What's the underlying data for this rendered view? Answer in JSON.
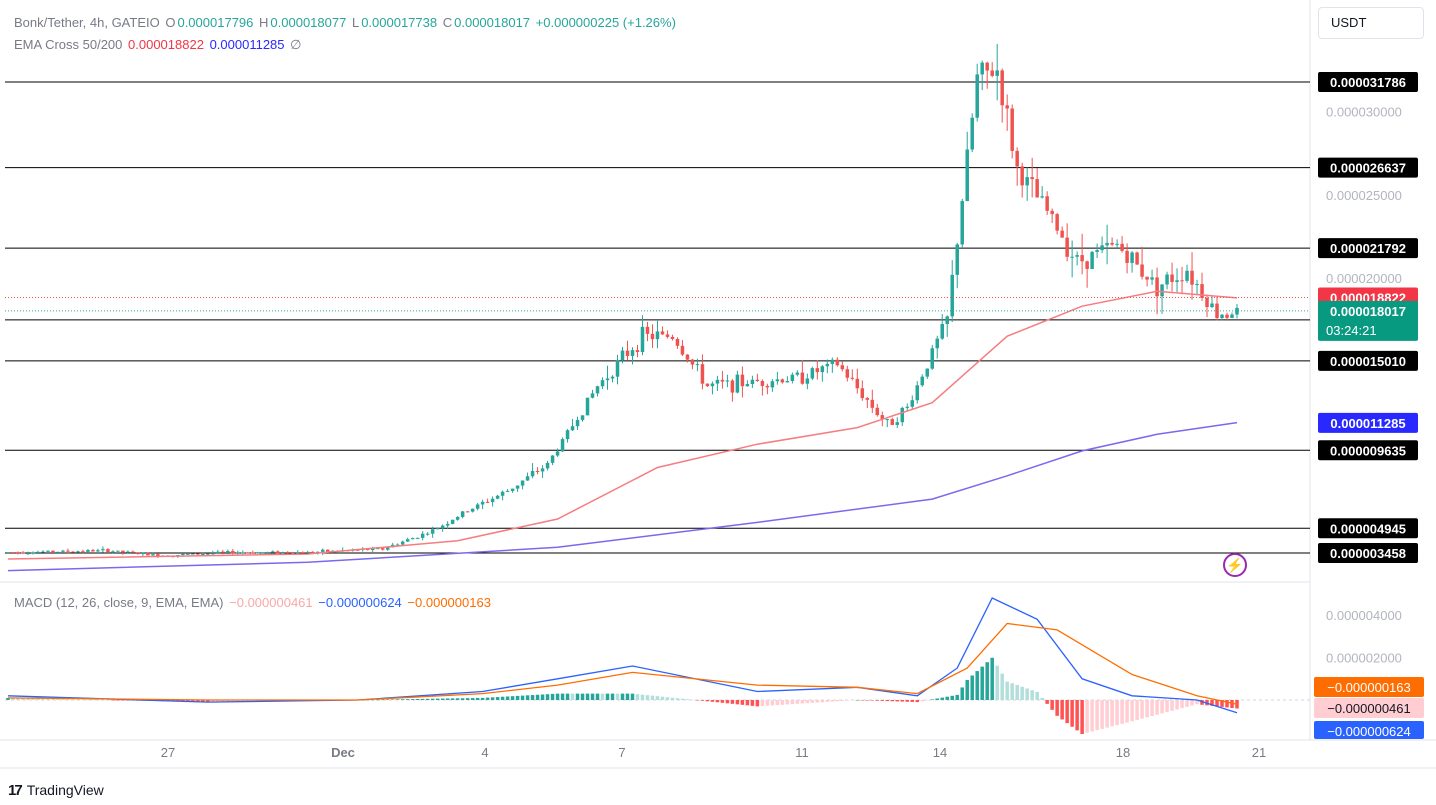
{
  "header": {
    "symbol": "Bonk/Tether, 4h, GATEIO",
    "open_label": "O",
    "open": "0.000017796",
    "high_label": "H",
    "high": "0.000018077",
    "low_label": "L",
    "low": "0.000017738",
    "close_label": "C",
    "close": "0.000018017",
    "change": "+0.000000225 (+1.26%)"
  },
  "ema_legend": {
    "name": "EMA Cross 50/200",
    "ema50": "0.000018822",
    "ema200": "0.000011285",
    "symbol": "∅"
  },
  "macd_legend": {
    "name": "MACD (12, 26, close, 9, EMA, EMA)",
    "histogram": "−0.000000461",
    "macd": "−0.000000624",
    "signal": "−0.000000163"
  },
  "currency_button": "USDT",
  "brand": "TradingView",
  "colors": {
    "up": "#26a69a",
    "down": "#ef5350",
    "ema50": "#f77c80",
    "ema200": "#7b68ee",
    "macd": "#2962ff",
    "signal": "#ff6d00",
    "hist_up_strong": "#26a69a",
    "hist_up_weak": "#b2dfdb",
    "hist_down_strong": "#ff5252",
    "hist_down_weak": "#ffcdd2"
  },
  "chart_data": {
    "type": "candlestick",
    "title": "Bonk/Tether, 4h, GATEIO",
    "price_axis_ticks": [
      "0.000030000",
      "0.000025000",
      "0.000020000"
    ],
    "time_axis_ticks": [
      "27",
      "Dec",
      "4",
      "7",
      "11",
      "14",
      "18",
      "21"
    ],
    "horizontal_levels": [
      "0.000031786",
      "0.000026637",
      "0.000021792",
      "0.000017476",
      "0.000015010",
      "0.000009635",
      "0.000004945",
      "0.000003458"
    ],
    "price_labels": {
      "ema50": "0.000018822",
      "last_price": "0.000018017",
      "countdown": "03:24:21",
      "ema200": "0.000011285"
    },
    "price_anchors": [
      {
        "t": 0,
        "p": 3.5e-06
      },
      {
        "t": 20,
        "p": 3.6e-06
      },
      {
        "t": 30,
        "p": 3.3e-06
      },
      {
        "t": 45,
        "p": 3.5e-06
      },
      {
        "t": 60,
        "p": 3.5e-06
      },
      {
        "t": 75,
        "p": 3.7e-06
      },
      {
        "t": 85,
        "p": 4.8e-06
      },
      {
        "t": 92,
        "p": 6e-06
      },
      {
        "t": 100,
        "p": 7.2e-06
      },
      {
        "t": 108,
        "p": 8.8e-06
      },
      {
        "t": 118,
        "p": 1.35e-05
      },
      {
        "t": 127,
        "p": 1.65e-05
      },
      {
        "t": 133,
        "p": 1.65e-05
      },
      {
        "t": 140,
        "p": 1.35e-05
      },
      {
        "t": 158,
        "p": 1.4e-05
      },
      {
        "t": 166,
        "p": 1.48e-05
      },
      {
        "t": 176,
        "p": 1.12e-05
      },
      {
        "t": 180,
        "p": 1.22e-05
      },
      {
        "t": 188,
        "p": 1.75e-05
      },
      {
        "t": 194,
        "p": 3.2e-05
      },
      {
        "t": 198,
        "p": 3.25e-05
      },
      {
        "t": 202,
        "p": 2.65e-05
      },
      {
        "t": 208,
        "p": 2.4e-05
      },
      {
        "t": 214,
        "p": 2.1e-05
      },
      {
        "t": 222,
        "p": 2.2e-05
      },
      {
        "t": 230,
        "p": 1.95e-05
      },
      {
        "t": 236,
        "p": 2.05e-05
      },
      {
        "t": 242,
        "p": 1.78e-05
      },
      {
        "t": 246,
        "p": 1.8e-05
      }
    ],
    "ema50": [
      [
        0,
        3.1e-06
      ],
      [
        60,
        3.4e-06
      ],
      [
        90,
        4.2e-06
      ],
      [
        110,
        5.5e-06
      ],
      [
        130,
        8.6e-06
      ],
      [
        150,
        1e-05
      ],
      [
        170,
        1.1e-05
      ],
      [
        185,
        1.25e-05
      ],
      [
        200,
        1.65e-05
      ],
      [
        215,
        1.83e-05
      ],
      [
        230,
        1.92e-05
      ],
      [
        246,
        1.88e-05
      ]
    ],
    "ema200": [
      [
        0,
        2.4e-06
      ],
      [
        60,
        2.9e-06
      ],
      [
        110,
        3.8e-06
      ],
      [
        150,
        5.3e-06
      ],
      [
        185,
        6.7e-06
      ],
      [
        200,
        8.1e-06
      ],
      [
        215,
        9.6e-06
      ],
      [
        230,
        1.06e-05
      ],
      [
        246,
        1.13e-05
      ]
    ],
    "macd_axis_ticks": [
      "0.000004000",
      "0.000002000"
    ],
    "macd_labels": {
      "signal": "−0.000000163",
      "histogram": "−0.000000461",
      "macd": "−0.000000624"
    },
    "macd_line": [
      [
        0,
        2e-07
      ],
      [
        40,
        -1e-07
      ],
      [
        70,
        0.0
      ],
      [
        95,
        4e-07
      ],
      [
        110,
        1e-06
      ],
      [
        125,
        1.6e-06
      ],
      [
        150,
        4e-07
      ],
      [
        170,
        6e-07
      ],
      [
        182,
        2e-07
      ],
      [
        190,
        1.5e-06
      ],
      [
        197,
        4.8e-06
      ],
      [
        206,
        3.8e-06
      ],
      [
        215,
        1e-06
      ],
      [
        225,
        2e-07
      ],
      [
        238,
        0.0
      ],
      [
        246,
        -6e-07
      ]
    ],
    "signal_line": [
      [
        0,
        1e-07
      ],
      [
        40,
        0.0
      ],
      [
        70,
        0.0
      ],
      [
        95,
        3e-07
      ],
      [
        110,
        7e-07
      ],
      [
        125,
        1.3e-06
      ],
      [
        150,
        7e-07
      ],
      [
        170,
        6e-07
      ],
      [
        182,
        3e-07
      ],
      [
        192,
        1.5e-06
      ],
      [
        200,
        3.6e-06
      ],
      [
        210,
        3.3e-06
      ],
      [
        225,
        1.2e-06
      ],
      [
        238,
        2e-07
      ],
      [
        246,
        -2e-07
      ]
    ]
  }
}
